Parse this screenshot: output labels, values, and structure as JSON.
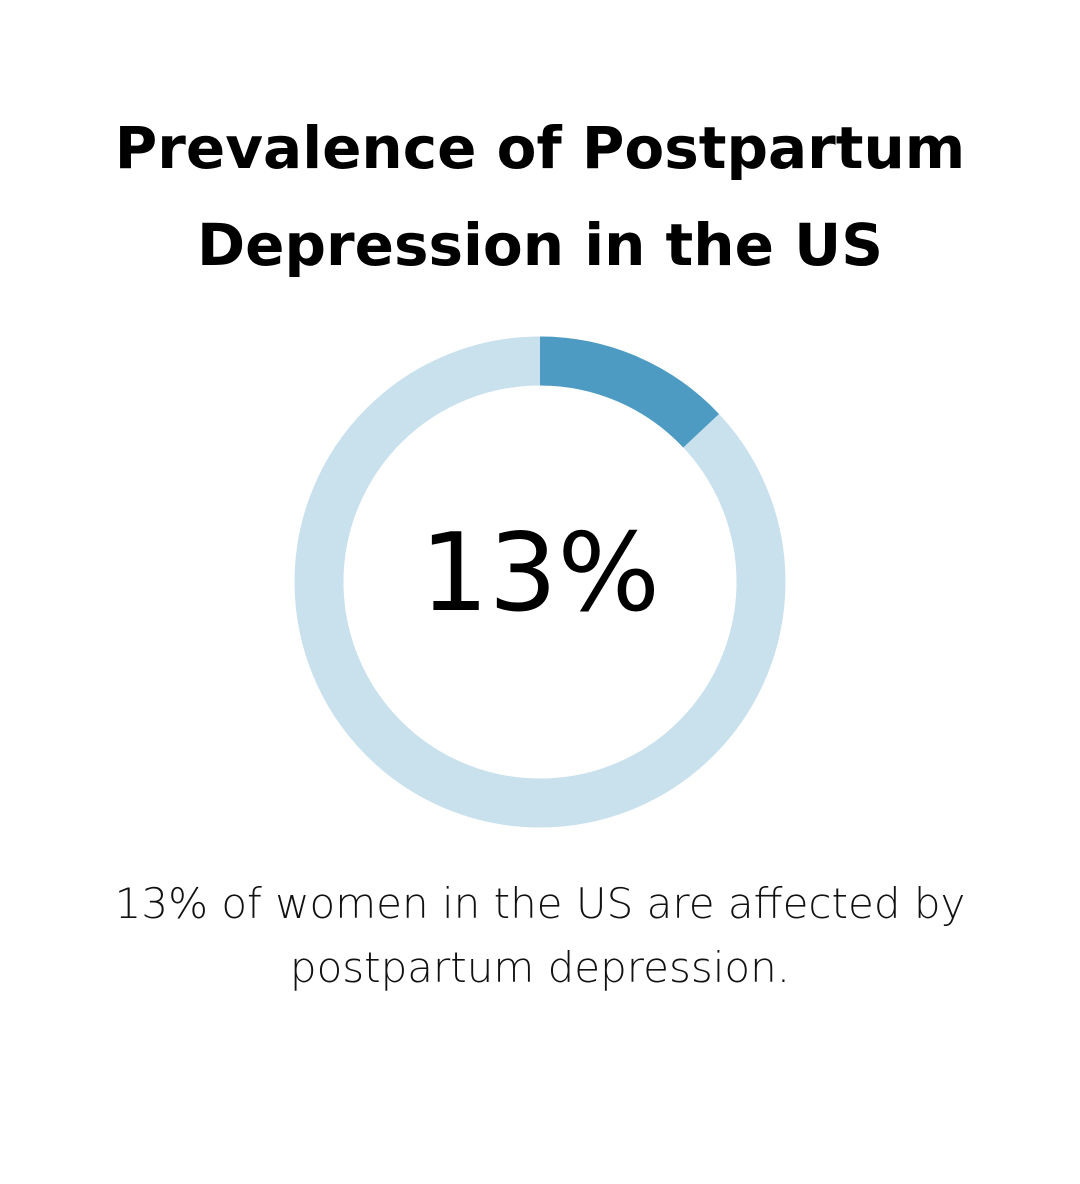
{
  "chart_data": {
    "type": "donut",
    "title": "Prevalence of Postpartum Depression in the US",
    "values": [
      13
    ],
    "value_labels": [
      "13%"
    ],
    "ylim": [
      0,
      100
    ],
    "color": "#4d9bc2",
    "track_color": "#c9e1ed",
    "caption": "13% of women in the US are affected by postpartum depression."
  }
}
